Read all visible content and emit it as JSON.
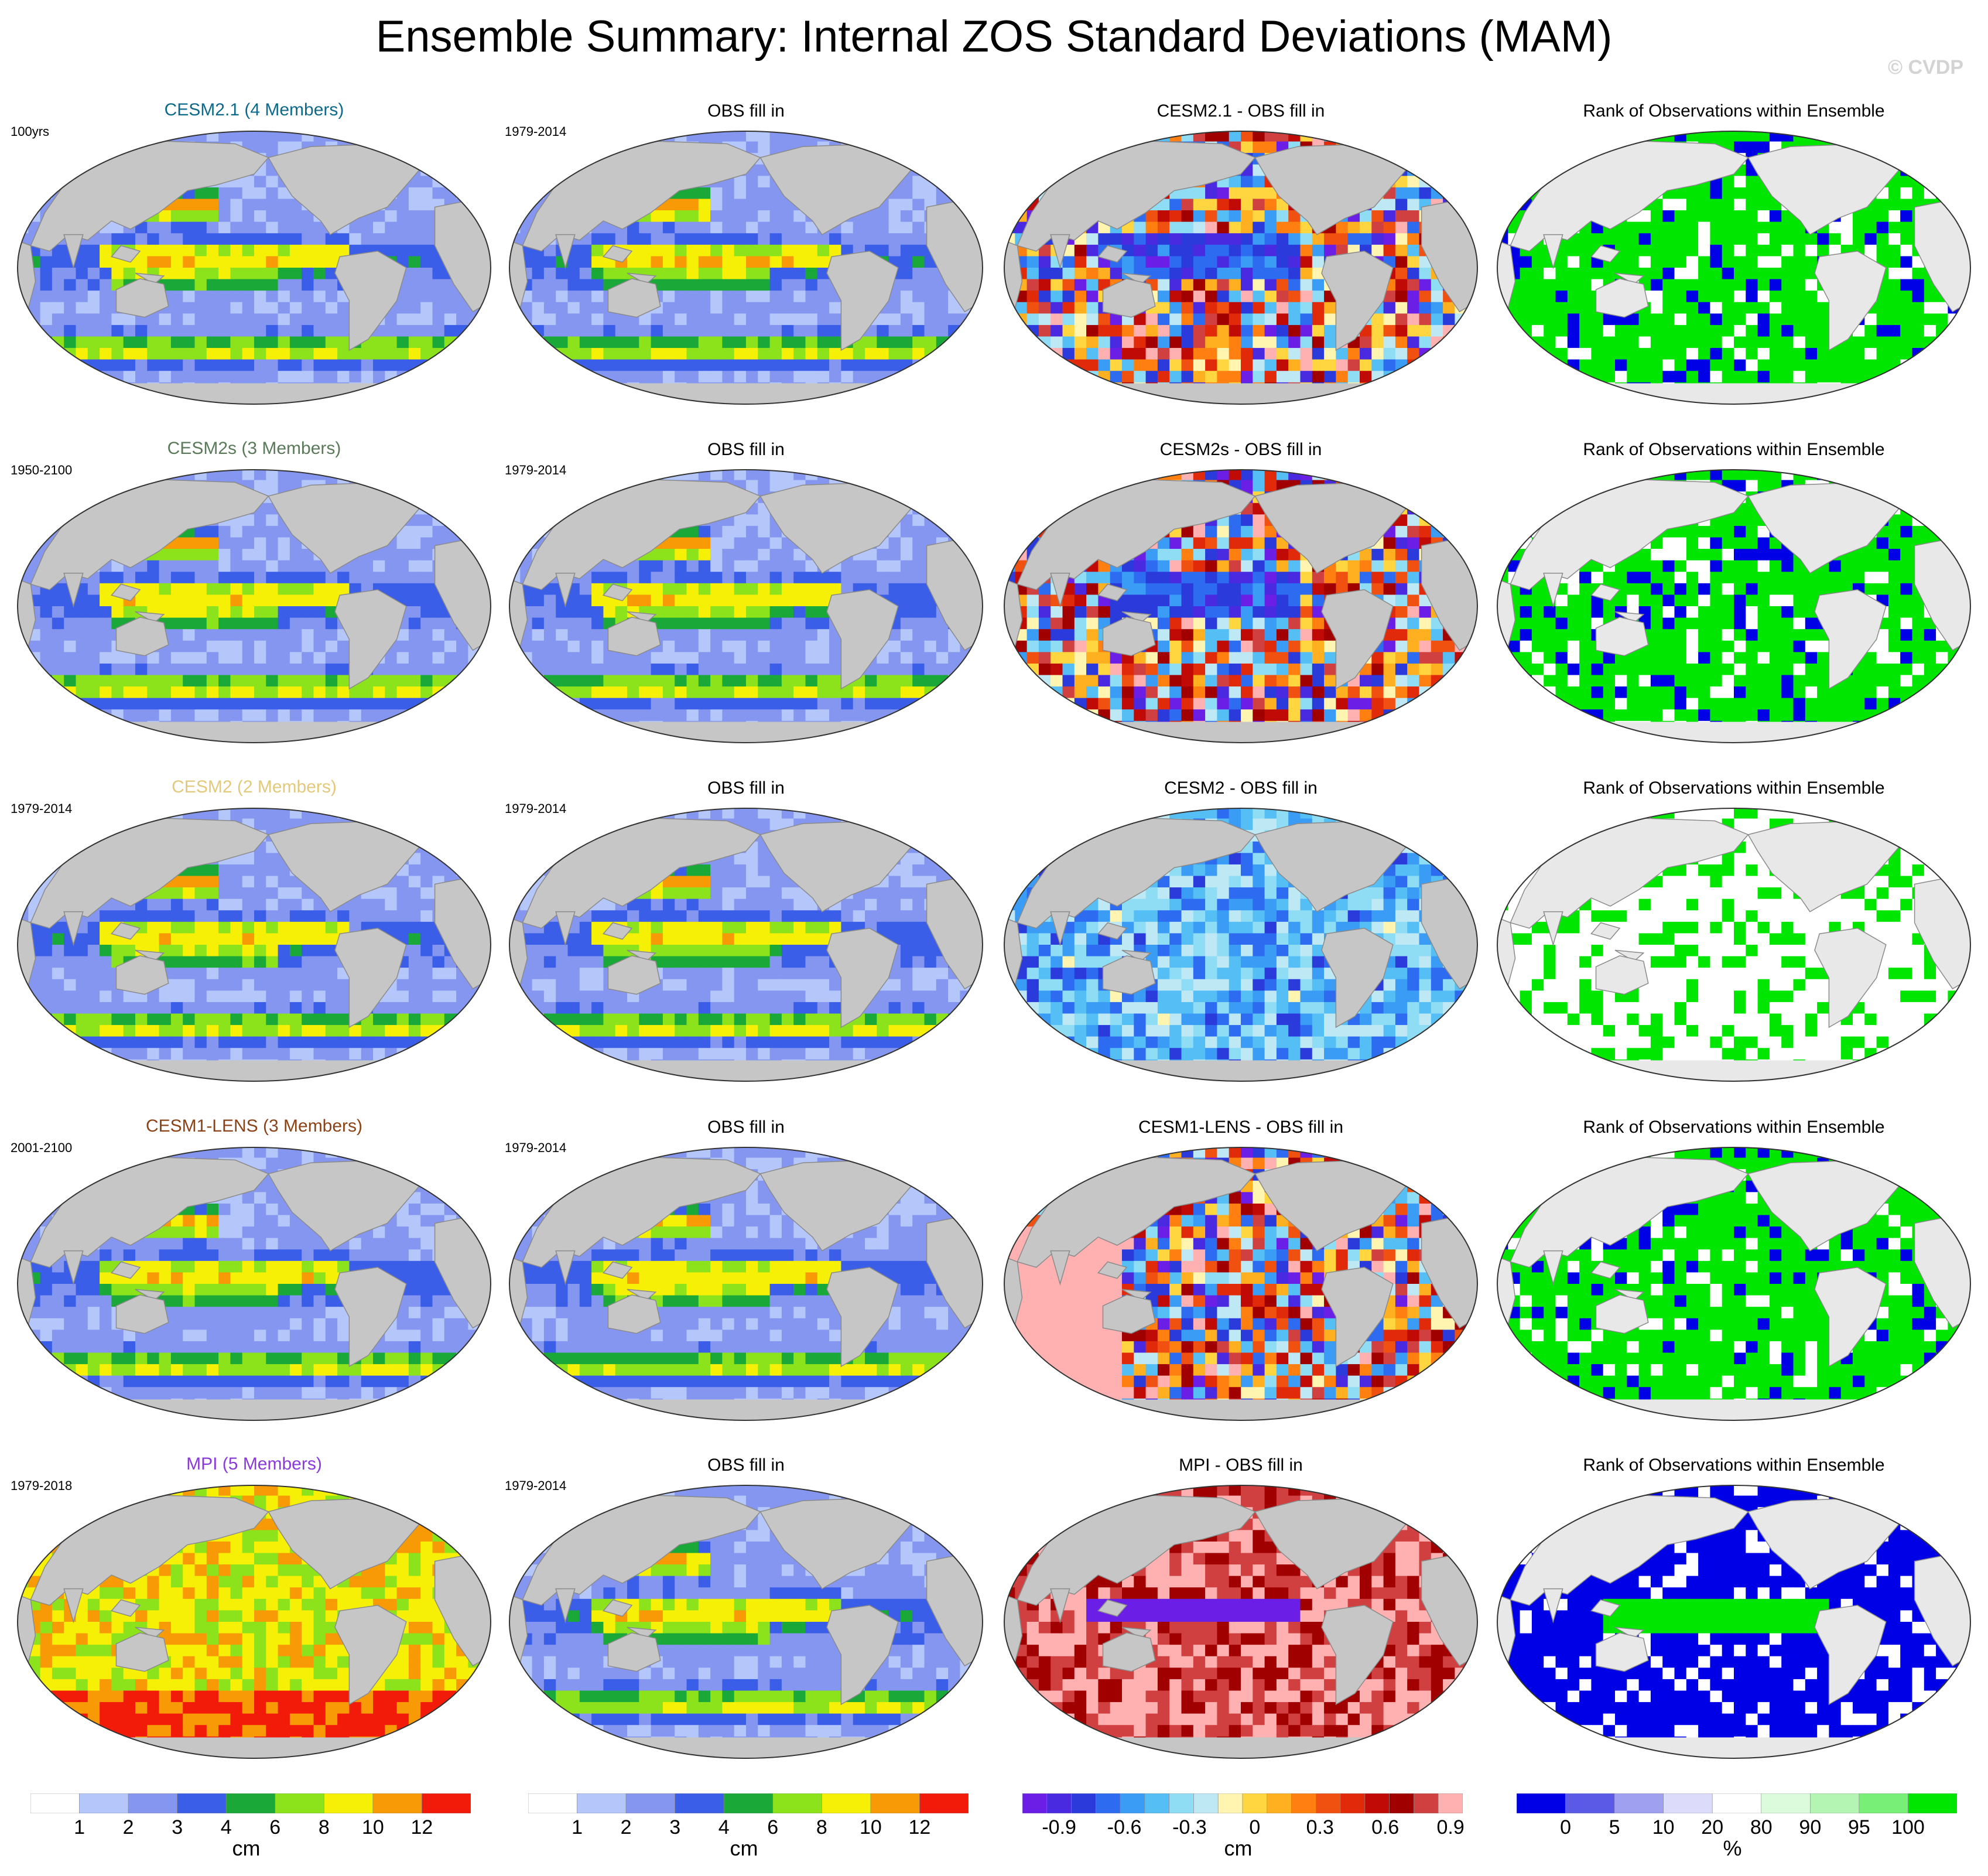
{
  "title": "Ensemble Summary: Internal ZOS Standard Deviations (MAM)",
  "watermark": "© CVDP",
  "colors": {
    "land": "#c6c6c6",
    "rank_land": "#e8e8e8",
    "std_scale": [
      "#ffffff",
      "#b4c6fa",
      "#8596f0",
      "#3b5ee8",
      "#1aa838",
      "#8ce31c",
      "#f5f005",
      "#f79a06",
      "#f21a08"
    ],
    "diff_scale": [
      "#6b1ee6",
      "#4a2ae0",
      "#2b3adb",
      "#2d6cf0",
      "#3a9cf5",
      "#55bff5",
      "#8fdcf5",
      "#bfe8f5",
      "#fff5b0",
      "#ffd640",
      "#ffb020",
      "#ff8010",
      "#f05010",
      "#e02a0a",
      "#c00a05",
      "#a00000",
      "#d04040",
      "#ffb0b0"
    ],
    "rank_scale": [
      "#0000e6",
      "#5a5ae6",
      "#a0a0f0",
      "#dcdcfa",
      "#ffffff",
      "#dcfadc",
      "#b4f5b4",
      "#78f078",
      "#00e600"
    ]
  },
  "rows": [
    {
      "model": "CESM2.1 (4 Members)",
      "model_color": "#0e6a8a",
      "period": "100yrs",
      "obs_title": "OBS fill in",
      "obs_period": "1979-2014",
      "diff_title": "CESM2.1 - OBS fill in",
      "rank_title": "Rank of Observations within Ensemble"
    },
    {
      "model": "CESM2s (3 Members)",
      "model_color": "#5a7a5a",
      "period": "1950-2100",
      "obs_title": "OBS fill in",
      "obs_period": "1979-2014",
      "diff_title": "CESM2s - OBS fill in",
      "rank_title": "Rank of Observations within Ensemble"
    },
    {
      "model": "CESM2 (2 Members)",
      "model_color": "#e2c97c",
      "period": "1979-2014",
      "obs_title": "OBS fill in",
      "obs_period": "1979-2014",
      "diff_title": "CESM2 - OBS fill in",
      "rank_title": "Rank of Observations within Ensemble"
    },
    {
      "model": "CESM1-LENS (3 Members)",
      "model_color": "#8a4216",
      "period": "2001-2100",
      "obs_title": "OBS fill in",
      "obs_period": "1979-2014",
      "diff_title": "CESM1-LENS - OBS fill in",
      "rank_title": "Rank of Observations within Ensemble"
    },
    {
      "model": "MPI (5 Members)",
      "model_color": "#8a3ad8",
      "period": "1979-2018",
      "obs_title": "OBS fill in",
      "obs_period": "1979-2014",
      "diff_title": "MPI - OBS fill in",
      "rank_title": "Rank of Observations within Ensemble"
    }
  ],
  "chart_data": [
    {
      "type": "heatmap",
      "colorbar": "std",
      "levels": [
        1,
        2,
        3,
        4,
        6,
        8,
        10,
        12
      ],
      "tick_labels": [
        "1",
        "2",
        "3",
        "4",
        "6",
        "8",
        "10",
        "12"
      ],
      "unit": "cm"
    },
    {
      "type": "heatmap",
      "colorbar": "std",
      "levels": [
        1,
        2,
        3,
        4,
        6,
        8,
        10,
        12
      ],
      "tick_labels": [
        "1",
        "2",
        "3",
        "4",
        "6",
        "8",
        "10",
        "12"
      ],
      "unit": "cm"
    },
    {
      "type": "heatmap",
      "colorbar": "diff",
      "levels": [
        -0.9,
        -0.6,
        -0.3,
        0,
        0.3,
        0.6,
        0.9
      ],
      "tick_labels": [
        "-0.9",
        "-0.6",
        "-0.3",
        "0",
        "0.3",
        "0.6",
        "0.9"
      ],
      "unit": "cm"
    },
    {
      "type": "heatmap",
      "colorbar": "rank",
      "levels": [
        0,
        5,
        10,
        20,
        80,
        90,
        95,
        100
      ],
      "tick_labels": [
        "0",
        "5",
        "10",
        "20",
        "80",
        "90",
        "95",
        "100"
      ],
      "unit": "%"
    }
  ]
}
